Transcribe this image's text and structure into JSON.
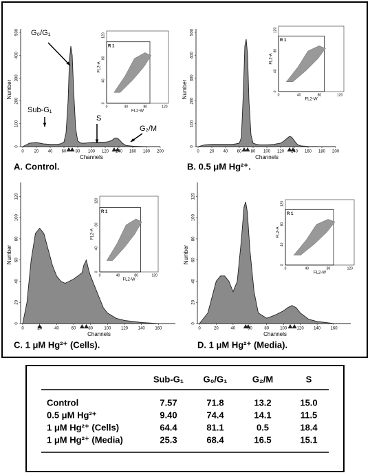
{
  "chart_data": [
    {
      "type": "area",
      "title": "A.  Control.",
      "xlabel": "Channels",
      "ylabel": "Number",
      "color": "#8a8a8a",
      "x": [
        0,
        10,
        20,
        30,
        40,
        50,
        55,
        60,
        63,
        66,
        68,
        70,
        72,
        74,
        77,
        80,
        85,
        90,
        100,
        110,
        120,
        125,
        130,
        133,
        136,
        139,
        142,
        145,
        150,
        160,
        180,
        200
      ],
      "values": [
        0,
        15,
        18,
        12,
        10,
        10,
        12,
        20,
        60,
        200,
        380,
        440,
        400,
        250,
        80,
        25,
        15,
        15,
        18,
        20,
        20,
        22,
        28,
        36,
        38,
        34,
        25,
        15,
        5,
        2,
        0,
        0
      ],
      "xlim": [
        0,
        200
      ],
      "xticks": [
        0,
        20,
        40,
        60,
        80,
        100,
        120,
        140,
        160,
        180,
        200
      ],
      "ylim": [
        0,
        500
      ],
      "yticks": [
        0,
        100,
        200,
        300,
        400,
        500
      ],
      "peak_markers": [
        67,
        72,
        133,
        138
      ],
      "annotations": [
        "G₀/G₁",
        "Sub-G₁",
        "S",
        "G₂/M"
      ],
      "inset": {
        "xlabel": "FL2-W",
        "ylabel": "FL2-A",
        "region": "R 1",
        "xlim": [
          0,
          128
        ],
        "xticks": [
          0,
          40,
          80,
          120
        ],
        "ylim": [
          0,
          128
        ],
        "yticks": [
          0,
          40,
          80,
          120
        ]
      }
    },
    {
      "type": "area",
      "title": "B.  0.5 μM Hg²⁺.",
      "xlabel": "Channels",
      "ylabel": "Number",
      "color": "#8a8a8a",
      "x": [
        0,
        10,
        20,
        30,
        40,
        50,
        55,
        60,
        63,
        66,
        68,
        70,
        72,
        74,
        77,
        80,
        85,
        90,
        100,
        110,
        120,
        125,
        130,
        133,
        136,
        139,
        142,
        145,
        150,
        160,
        180,
        200
      ],
      "values": [
        0,
        8,
        10,
        10,
        10,
        10,
        12,
        15,
        40,
        250,
        440,
        470,
        400,
        200,
        50,
        15,
        10,
        8,
        8,
        10,
        15,
        25,
        38,
        45,
        42,
        30,
        18,
        8,
        3,
        1,
        0,
        0
      ],
      "xlim": [
        0,
        200
      ],
      "xticks": [
        0,
        20,
        40,
        60,
        80,
        100,
        120,
        140,
        160,
        180,
        200
      ],
      "ylim": [
        0,
        500
      ],
      "yticks": [
        0,
        100,
        200,
        300,
        400,
        500
      ],
      "peak_markers": [
        67,
        72,
        133,
        138
      ],
      "inset": {
        "xlabel": "FL2-W",
        "ylabel": "FL2-A",
        "region": "R 1",
        "xlim": [
          0,
          128
        ],
        "xticks": [
          0,
          40,
          80,
          120
        ],
        "ylim": [
          0,
          128
        ],
        "yticks": [
          0,
          40,
          80,
          120
        ]
      }
    },
    {
      "type": "area",
      "title": "C.  1 μM Hg²⁺ (Cells).",
      "xlabel": "Channels",
      "ylabel": "Number",
      "color": "#8a8a8a",
      "x": [
        0,
        5,
        10,
        15,
        20,
        25,
        30,
        35,
        40,
        45,
        50,
        55,
        60,
        65,
        70,
        72,
        75,
        78,
        80,
        85,
        90,
        95,
        100,
        110,
        120,
        140,
        160,
        180
      ],
      "values": [
        0,
        20,
        60,
        85,
        90,
        85,
        70,
        55,
        45,
        40,
        38,
        40,
        42,
        45,
        48,
        55,
        60,
        50,
        45,
        35,
        25,
        15,
        10,
        5,
        3,
        1,
        0,
        0
      ],
      "xlim": [
        0,
        180
      ],
      "xticks": [
        0,
        20,
        40,
        60,
        80,
        100,
        120,
        140,
        160
      ],
      "ylim": [
        0,
        130
      ],
      "yticks": [
        0,
        20,
        40,
        60,
        80,
        100,
        120
      ],
      "peak_markers": [
        20,
        70,
        75
      ],
      "inset": {
        "xlabel": "FL2-W",
        "ylabel": "FL2-A",
        "region": "R 1",
        "xlim": [
          0,
          128
        ],
        "xticks": [
          0,
          40,
          80,
          120
        ],
        "ylim": [
          0,
          128
        ],
        "yticks": [
          0,
          40,
          80,
          120
        ]
      }
    },
    {
      "type": "area",
      "title": "D.  1 μM Hg²⁺ (Media).",
      "xlabel": "Channels",
      "ylabel": "Number",
      "color": "#8a8a8a",
      "x": [
        0,
        10,
        15,
        20,
        25,
        30,
        35,
        40,
        45,
        50,
        53,
        55,
        57,
        60,
        65,
        70,
        80,
        90,
        100,
        105,
        110,
        115,
        120,
        130,
        140,
        160,
        180
      ],
      "values": [
        0,
        10,
        25,
        40,
        45,
        45,
        40,
        30,
        40,
        80,
        110,
        115,
        105,
        70,
        30,
        10,
        5,
        8,
        12,
        15,
        17,
        15,
        10,
        4,
        2,
        0,
        0
      ],
      "xlim": [
        0,
        180
      ],
      "xticks": [
        0,
        20,
        40,
        60,
        80,
        100,
        120,
        140,
        160
      ],
      "ylim": [
        0,
        130
      ],
      "yticks": [
        0,
        20,
        40,
        60,
        80,
        100,
        120
      ],
      "peak_markers": [
        55,
        58,
        108,
        113
      ],
      "inset": {
        "xlabel": "FL2-W",
        "ylabel": "FL2-A",
        "region": "R 1",
        "xlim": [
          0,
          128
        ],
        "xticks": [
          0,
          40,
          80,
          120
        ],
        "ylim": [
          0,
          128
        ],
        "yticks": [
          0,
          40,
          80,
          120
        ]
      }
    }
  ],
  "table": {
    "columns": [
      "Sub-G₁",
      "G₀/G₁",
      "G₂/M",
      "S"
    ],
    "rows": [
      {
        "label": "Control",
        "values": [
          "7.57",
          "71.8",
          "13.2",
          "15.0"
        ]
      },
      {
        "label": "0.5 μM Hg²⁺",
        "values": [
          "9.40",
          "74.4",
          "14.1",
          "11.5"
        ]
      },
      {
        "label": "1 μM Hg²⁺ (Cells)",
        "values": [
          "64.4",
          "81.1",
          "0.5",
          "18.4"
        ]
      },
      {
        "label": "1 μM Hg²⁺ (Media)",
        "values": [
          "25.3",
          "68.4",
          "16.5",
          "15.1"
        ]
      }
    ]
  }
}
